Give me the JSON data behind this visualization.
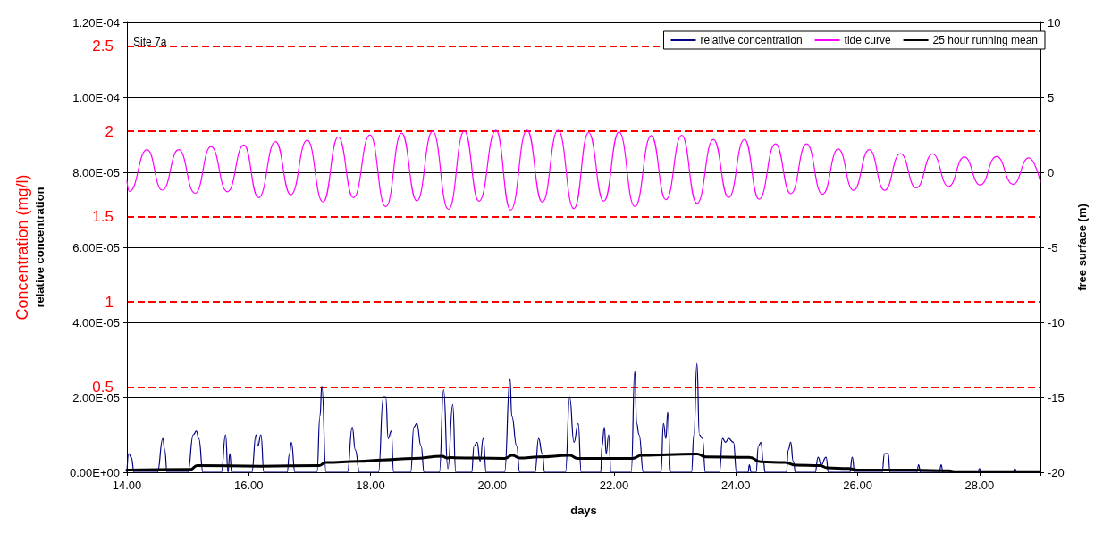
{
  "chart_data": {
    "type": "line",
    "xlabel": "days",
    "ylabel": "relative concentration",
    "y2label": "free surface (m)",
    "y3label": "Concentration (mg/l)",
    "annotations": [
      "Site 7a"
    ],
    "xlim": [
      14,
      29
    ],
    "xticks": [
      {
        "value": 14,
        "label": "14.00"
      },
      {
        "value": 16,
        "label": "16.00"
      },
      {
        "value": 18,
        "label": "18.00"
      },
      {
        "value": 20,
        "label": "20.00"
      },
      {
        "value": 22,
        "label": "22.00"
      },
      {
        "value": 24,
        "label": "24.00"
      },
      {
        "value": 26,
        "label": "26.00"
      },
      {
        "value": 28,
        "label": "28.00"
      }
    ],
    "ylim": [
      0,
      0.00012
    ],
    "yticks": [
      {
        "value": 0,
        "label": "0.00E+00"
      },
      {
        "value": 2e-05,
        "label": "2.00E-05"
      },
      {
        "value": 4e-05,
        "label": "4.00E-05"
      },
      {
        "value": 6e-05,
        "label": "6.00E-05"
      },
      {
        "value": 8e-05,
        "label": "8.00E-05"
      },
      {
        "value": 0.0001,
        "label": "1.00E-04"
      },
      {
        "value": 0.00012,
        "label": "1.20E-04"
      }
    ],
    "y2lim": [
      -20,
      10
    ],
    "y2ticks": [
      -20,
      -15,
      -10,
      -5,
      0,
      5,
      10
    ],
    "y3lim": [
      0,
      2.64
    ],
    "y3ticks": [
      0.5,
      1,
      1.5,
      2,
      2.5
    ],
    "grid": "y",
    "legend": "top right",
    "marker": "none",
    "line_style": "solid",
    "series": [
      {
        "name": "relative concentration",
        "color": "#000080",
        "x": [
          14.0,
          14.03,
          14.07,
          14.12,
          14.5,
          14.59,
          14.62,
          14.66,
          15.0,
          15.09,
          15.14,
          15.18,
          15.25,
          15.55,
          15.62,
          15.66,
          15.69,
          15.72,
          16.05,
          16.12,
          16.15,
          16.2,
          16.25,
          16.63,
          16.67,
          16.7,
          16.76,
          17.12,
          17.17,
          17.2,
          17.27,
          17.62,
          17.7,
          17.75,
          17.82,
          18.13,
          18.21,
          18.25,
          18.29,
          18.34,
          18.38,
          18.66,
          18.71,
          18.76,
          18.83,
          18.88,
          19.13,
          19.2,
          19.27,
          19.35,
          19.4,
          19.66,
          19.7,
          19.75,
          19.8,
          19.85,
          19.9,
          20.2,
          20.29,
          20.32,
          20.4,
          20.45,
          20.7,
          20.76,
          20.82,
          20.86,
          21.2,
          21.27,
          21.34,
          21.41,
          21.46,
          21.78,
          21.8,
          21.84,
          21.87,
          21.91,
          21.95,
          22.28,
          22.34,
          22.37,
          22.41,
          22.48,
          22.77,
          22.81,
          22.85,
          22.88,
          22.93,
          23.27,
          23.31,
          23.36,
          23.4,
          23.45,
          23.5,
          23.73,
          23.78,
          23.83,
          23.88,
          23.96,
          24.01,
          24.2,
          24.22,
          24.25,
          24.33,
          24.37,
          24.41,
          24.45,
          24.48,
          24.83,
          24.86,
          24.9,
          24.94,
          24.98,
          25.3,
          25.35,
          25.4,
          25.48,
          25.52,
          25.87,
          25.91,
          25.95,
          26.4,
          26.44,
          26.5,
          26.53,
          26.97,
          27.0,
          27.03,
          27.34,
          27.37,
          27.4,
          27.97,
          28.0,
          28.03,
          28.55,
          28.58,
          28.61,
          29.0
        ],
        "values": [
          0,
          5e-06,
          4e-06,
          0,
          0,
          9e-06,
          6e-06,
          0,
          0,
          1e-05,
          1.1e-05,
          9e-06,
          0,
          0,
          1e-05,
          0,
          5e-06,
          0,
          0,
          1e-05,
          7e-06,
          1e-05,
          0,
          0,
          5e-06,
          8e-06,
          0,
          0,
          1.5e-05,
          2.3e-05,
          0,
          0,
          1.2e-05,
          6e-06,
          0,
          0,
          2e-05,
          2e-05,
          9e-06,
          1.1e-05,
          0,
          0,
          1.2e-05,
          1.3e-05,
          7e-06,
          0,
          0,
          2.2e-05,
          1e-06,
          1.8e-05,
          0,
          0,
          7e-06,
          8e-06,
          3e-06,
          9e-06,
          0,
          0,
          2.5e-05,
          1.5e-05,
          7e-06,
          0,
          0,
          9e-06,
          5e-06,
          0,
          0,
          2e-05,
          8e-06,
          1.3e-05,
          0,
          0,
          7e-06,
          1.2e-05,
          5e-06,
          1e-05,
          0,
          0,
          2.7e-05,
          1.3e-05,
          1e-05,
          0,
          0,
          1.3e-05,
          9e-06,
          1.6e-05,
          0,
          0,
          1e-05,
          2.9e-05,
          1e-05,
          9e-06,
          0,
          0,
          9e-06,
          8e-06,
          9e-06,
          8e-06,
          0,
          0,
          2e-06,
          0,
          0,
          7e-06,
          8e-06,
          3e-06,
          0,
          0,
          6e-06,
          8e-06,
          3e-06,
          0,
          0,
          4e-06,
          2e-06,
          4e-06,
          0,
          0,
          4e-06,
          0,
          0,
          5e-06,
          5e-06,
          0,
          0,
          2e-06,
          0,
          0,
          2e-06,
          0,
          0,
          1e-06,
          0,
          0,
          1e-06,
          0,
          0
        ]
      },
      {
        "name": "tide curve",
        "color": "#ff00ff",
        "axis": "y2",
        "x": [
          14.0,
          14.04,
          14.33,
          14.58,
          14.85,
          15.12,
          15.38,
          15.65,
          15.92,
          16.16,
          16.44,
          16.69,
          16.96,
          17.22,
          17.47,
          17.72,
          17.99,
          18.25,
          18.51,
          18.76,
          19.02,
          19.28,
          19.54,
          19.78,
          20.06,
          20.3,
          20.57,
          20.82,
          21.08,
          21.34,
          21.58,
          21.83,
          22.08,
          22.34,
          22.61,
          22.85,
          23.11,
          23.36,
          23.63,
          23.88,
          24.14,
          24.38,
          24.65,
          24.9,
          25.16,
          25.42,
          25.68,
          25.93,
          26.19,
          26.44,
          26.7,
          26.96,
          27.23,
          27.49,
          27.75,
          28.01,
          28.28,
          28.55,
          28.81,
          29.0
        ],
        "values": [
          -0.58,
          -1.27,
          1.51,
          -1.19,
          1.51,
          -1.4,
          1.72,
          -1.3,
          1.82,
          -1.69,
          2.05,
          -1.5,
          2.15,
          -1.98,
          2.35,
          -1.69,
          2.49,
          -2.3,
          2.61,
          -1.9,
          2.73,
          -2.47,
          2.75,
          -1.93,
          2.81,
          -2.53,
          2.81,
          -1.99,
          2.81,
          -2.43,
          2.65,
          -1.93,
          2.69,
          -2.29,
          2.45,
          -1.83,
          2.47,
          -2.07,
          2.2,
          -1.68,
          2.2,
          -1.79,
          1.9,
          -1.43,
          1.9,
          -1.47,
          1.55,
          -1.2,
          1.51,
          -1.2,
          1.25,
          -1.04,
          1.22,
          -0.94,
          1.02,
          -0.84,
          1.05,
          -0.8,
          0.96,
          -0.64
        ]
      },
      {
        "name": "25 hour running mean",
        "color": "#000000",
        "x": [
          14,
          15.05,
          15.15,
          16.2,
          17.16,
          17.26,
          17.8,
          18.2,
          18.7,
          19.18,
          19.25,
          19.32,
          20.2,
          20.33,
          20.45,
          20.76,
          21.27,
          21.4,
          22.3,
          22.45,
          22.88,
          23.36,
          23.5,
          24.22,
          24.41,
          24.8,
          24.99,
          25.38,
          25.5,
          25.85,
          26.0,
          26.92,
          27.5,
          27.58,
          28.98
        ],
        "values": [
          6e-07,
          8e-07,
          1.8e-06,
          1.6e-06,
          1.8e-06,
          2.6e-06,
          2.9e-06,
          3.3e-06,
          3.7e-06,
          4.3e-06,
          3.8e-06,
          3.9e-06,
          3.7e-06,
          4.5e-06,
          3.8e-06,
          4.1e-06,
          4.5e-06,
          3.7e-06,
          3.7e-06,
          4.5e-06,
          4.7e-06,
          4.9e-06,
          4.1e-06,
          4e-06,
          2.8e-06,
          2.6e-06,
          1.9e-06,
          1.8e-06,
          1.2e-06,
          1e-06,
          6e-07,
          6e-07,
          4e-07,
          2e-07,
          2e-07
        ]
      }
    ]
  }
}
